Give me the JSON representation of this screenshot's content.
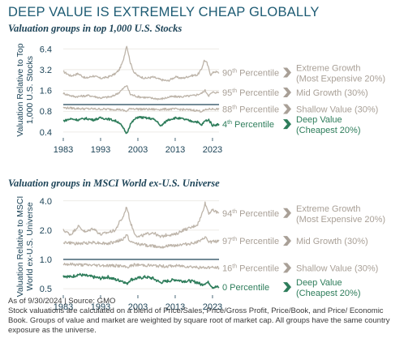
{
  "title": "DEEP VALUE IS EXTREMELY CHEAP GLOBALLY",
  "colors": {
    "title": "#1d5b73",
    "grey_series": "#bdb4a9",
    "grey_label": "#a9a097",
    "deep_value": "#2e7d5b",
    "axis": "#1d4458"
  },
  "chart_data": [
    {
      "type": "line",
      "title": "Valuation groups in top 1,000 U.S. Stocks",
      "ylabel": "Valuation Relative to Top 1,000 U.S. Stocks",
      "xlabel": "",
      "y_scale": "log",
      "ylim": [
        0.33,
        8.0
      ],
      "xlim": [
        1983,
        2024.75
      ],
      "yticks": [
        "6.4",
        "3.2",
        "1.6",
        "0.8",
        "0.4"
      ],
      "xticks": [
        "1983",
        "1993",
        "2003",
        "2013",
        "2023"
      ],
      "reference_line": 1.0,
      "series": [
        {
          "name": "Extreme Growth (Most Expensive 20%)",
          "percentile": "90th Percentile",
          "color": "#bdb4a9",
          "x": [
            1983,
            1985,
            1987,
            1989,
            1991,
            1993,
            1995,
            1997,
            1998,
            1999,
            1999.5,
            2000,
            2001,
            2002,
            2003,
            2005,
            2007,
            2009,
            2011,
            2013,
            2015,
            2017,
            2019,
            2020,
            2020.8,
            2021.5,
            2022.5,
            2023.5,
            2024.75
          ],
          "y": [
            3.0,
            2.6,
            2.8,
            2.4,
            2.6,
            2.4,
            2.5,
            2.8,
            3.2,
            4.2,
            5.5,
            7.2,
            4.0,
            2.9,
            2.6,
            2.4,
            2.5,
            2.3,
            2.2,
            2.5,
            2.4,
            2.6,
            2.7,
            3.2,
            4.4,
            4.0,
            2.7,
            3.0,
            2.9
          ]
        },
        {
          "name": "Mid Growth (30%)",
          "percentile": "95th Percentile",
          "color": "#bdb4a9",
          "x": [
            1983,
            1986,
            1990,
            1993,
            1996,
            1998,
            2000,
            2001,
            2003,
            2006,
            2009,
            2012,
            2015,
            2018,
            2020,
            2021,
            2022,
            2023,
            2024.75
          ],
          "y": [
            1.45,
            1.3,
            1.35,
            1.25,
            1.3,
            1.5,
            1.9,
            1.4,
            1.3,
            1.25,
            1.2,
            1.3,
            1.3,
            1.35,
            1.45,
            1.6,
            1.35,
            1.5,
            1.5
          ]
        },
        {
          "name": "Shallow Value (30%)",
          "percentile": "88th Percentile",
          "color": "#bdb4a9",
          "x": [
            1983,
            1988,
            1993,
            1998,
            2000,
            2001,
            2003,
            2008,
            2013,
            2018,
            2020,
            2022,
            2024.75
          ],
          "y": [
            0.9,
            0.87,
            0.86,
            0.85,
            0.8,
            0.88,
            0.86,
            0.85,
            0.86,
            0.83,
            0.8,
            0.86,
            0.86
          ]
        },
        {
          "name": "Deep Value (Cheapest 20%)",
          "percentile": "4th Percentile",
          "color": "#2e7d5b",
          "x": [
            1983,
            1985,
            1987,
            1989,
            1991,
            1993,
            1995,
            1997,
            1998,
            1999,
            2000,
            2001,
            2002,
            2003,
            2005,
            2007,
            2008.5,
            2009,
            2011,
            2013,
            2015,
            2017,
            2019,
            2020,
            2021,
            2022,
            2023,
            2024.75
          ],
          "y": [
            0.58,
            0.62,
            0.6,
            0.63,
            0.6,
            0.64,
            0.62,
            0.58,
            0.55,
            0.46,
            0.38,
            0.52,
            0.6,
            0.66,
            0.64,
            0.62,
            0.55,
            0.48,
            0.6,
            0.64,
            0.62,
            0.58,
            0.56,
            0.5,
            0.58,
            0.6,
            0.5,
            0.52
          ]
        }
      ]
    },
    {
      "type": "line",
      "title": "Valuation groups in MSCI World ex-U.S. Universe",
      "ylabel": "Valuation Relative to MSCI World ex-U.S. Universe",
      "xlabel": "",
      "y_scale": "log",
      "ylim": [
        0.43,
        4.3
      ],
      "xlim": [
        1983,
        2024.75
      ],
      "yticks": [
        "4.0",
        "2.0",
        "1.0",
        "0.5"
      ],
      "xticks": [
        "1983",
        "1993",
        "2003",
        "2013",
        "2023"
      ],
      "reference_line": 1.0,
      "series": [
        {
          "name": "Extreme Growth (Most Expensive 20%)",
          "percentile": "94th Percentile",
          "color": "#bdb4a9",
          "x": [
            1983,
            1985,
            1987,
            1989,
            1991,
            1993,
            1995,
            1997,
            1998,
            1999,
            2000,
            2001,
            2002,
            2003,
            2005,
            2007,
            2009,
            2011,
            2013,
            2015,
            2017,
            2019,
            2020,
            2021,
            2022,
            2023,
            2024.75
          ],
          "y": [
            2.0,
            1.8,
            2.2,
            1.9,
            2.1,
            1.8,
            1.9,
            2.0,
            2.4,
            2.7,
            3.5,
            2.4,
            1.9,
            1.7,
            1.8,
            1.9,
            1.7,
            1.8,
            1.8,
            2.0,
            2.1,
            2.3,
            2.8,
            3.8,
            3.0,
            3.2,
            3.0
          ]
        },
        {
          "name": "Mid Growth (30%)",
          "percentile": "97th Percentile",
          "color": "#bdb4a9",
          "x": [
            1983,
            1987,
            1991,
            1995,
            1999,
            2000,
            2001,
            2005,
            2009,
            2013,
            2017,
            2020,
            2021,
            2022,
            2024.75
          ],
          "y": [
            1.5,
            1.45,
            1.5,
            1.45,
            1.6,
            1.8,
            1.5,
            1.4,
            1.35,
            1.4,
            1.45,
            1.55,
            1.7,
            1.5,
            1.55
          ]
        },
        {
          "name": "Shallow Value (30%)",
          "percentile": "16th Percentile",
          "color": "#bdb4a9",
          "x": [
            1983,
            1988,
            1993,
            1998,
            2000,
            2002,
            2006,
            2010,
            2014,
            2018,
            2020,
            2022,
            2024.75
          ],
          "y": [
            0.9,
            0.88,
            0.87,
            0.86,
            0.83,
            0.88,
            0.87,
            0.85,
            0.86,
            0.84,
            0.82,
            0.83,
            0.82
          ]
        },
        {
          "name": "Deep Value (Cheapest 20%)",
          "percentile": "0 Percentile",
          "color": "#2e7d5b",
          "x": [
            1983,
            1985,
            1987,
            1989,
            1991,
            1993,
            1995,
            1997,
            1999,
            2000,
            2001,
            2003,
            2005,
            2007,
            2009,
            2011,
            2013,
            2015,
            2017,
            2019,
            2020,
            2021,
            2022,
            2023,
            2024.75
          ],
          "y": [
            0.68,
            0.66,
            0.7,
            0.68,
            0.66,
            0.64,
            0.66,
            0.62,
            0.6,
            0.56,
            0.62,
            0.64,
            0.66,
            0.64,
            0.58,
            0.6,
            0.62,
            0.6,
            0.6,
            0.58,
            0.55,
            0.57,
            0.58,
            0.52,
            0.52
          ]
        }
      ]
    }
  ],
  "footnote": {
    "as_of": "As of 9/30/2024 | Source: GMO",
    "text": "Stock valuations are calculated on a blend of Price/Sales, Price/Gross Profit, Price/Book, and Price/ Economic Book. Groups of value and market are weighted by square root of market cap. All groups have the same country exposure as the universe."
  }
}
